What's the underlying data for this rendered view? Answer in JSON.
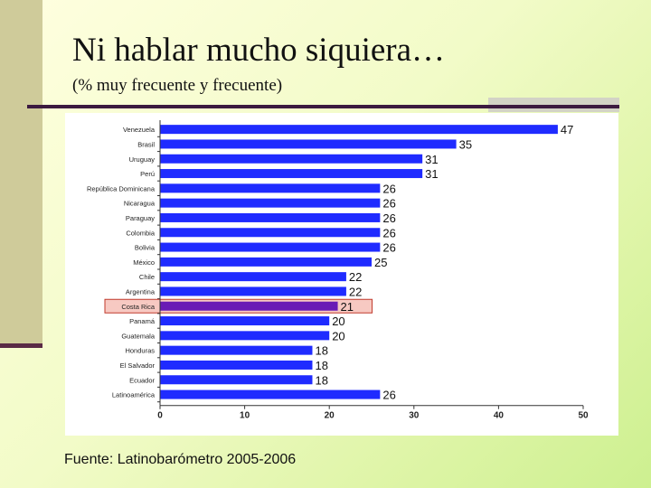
{
  "slide": {
    "title": "Ni hablar mucho siquiera…",
    "subtitle": "(% muy frecuente y frecuente)",
    "source": "Fuente: Latinobarómetro 2005-2006"
  },
  "colors": {
    "bar": "#1f2bff",
    "highlight_bar": "#6a1bb5",
    "highlight_box": "#f7c9c2",
    "highlight_border": "#c0392b"
  },
  "chart_data": {
    "type": "bar",
    "orientation": "horizontal",
    "categories": [
      "Venezuela",
      "Brasil",
      "Uruguay",
      "Perú",
      "República Dominicana",
      "Nicaragua",
      "Paraguay",
      "Colombia",
      "Bolivia",
      "México",
      "Chile",
      "Argentina",
      "Costa Rica",
      "Panamá",
      "Guatemala",
      "Honduras",
      "El Salvador",
      "Ecuador",
      "Latinoamérica"
    ],
    "values": [
      47,
      35,
      31,
      31,
      26,
      26,
      26,
      26,
      26,
      25,
      22,
      22,
      21,
      20,
      20,
      18,
      18,
      18,
      26
    ],
    "highlight": "Costa Rica",
    "xlim": [
      0,
      50
    ],
    "xticks": [
      0,
      10,
      20,
      30,
      40,
      50
    ],
    "grid": false,
    "legend": "none"
  }
}
